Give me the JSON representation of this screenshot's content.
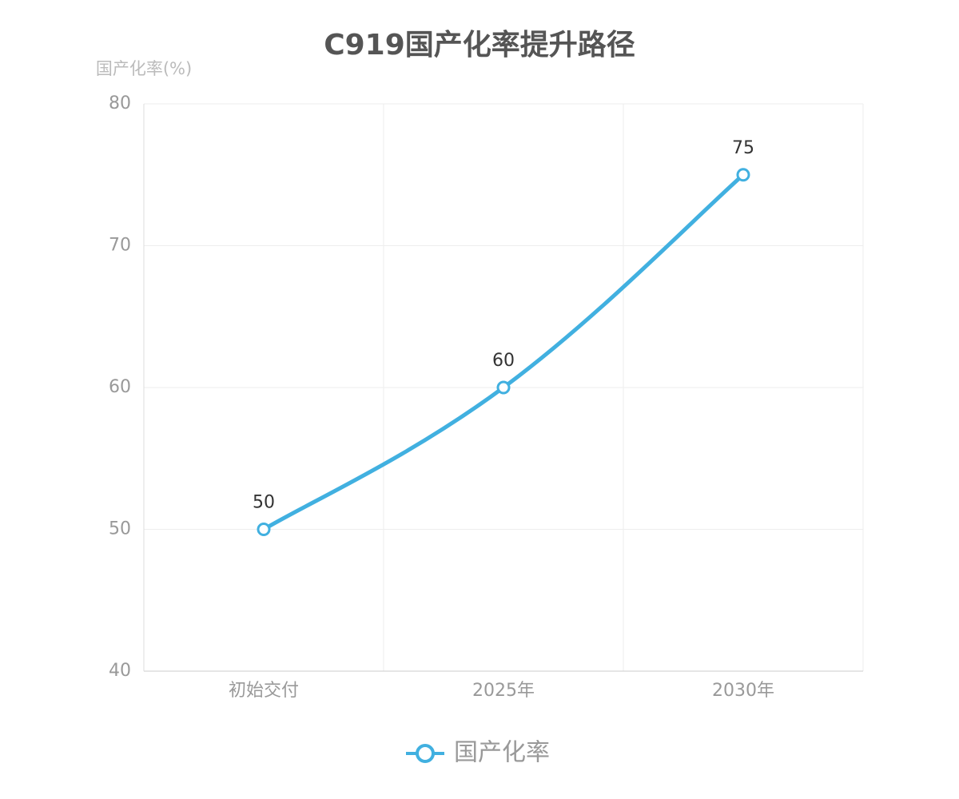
{
  "chart_data": {
    "type": "line",
    "title": "C919国产化率提升路径",
    "y_label": "国产化率(%)",
    "categories": [
      "初始交付",
      "2025年",
      "2030年"
    ],
    "series": [
      {
        "name": "国产化率",
        "color": "#41b0e0",
        "values": [
          50,
          60,
          75
        ]
      }
    ],
    "ylim": [
      40,
      80
    ],
    "yticks": [
      40,
      50,
      60,
      70,
      80
    ],
    "grid": true,
    "smooth": true,
    "legend": "bottom"
  }
}
